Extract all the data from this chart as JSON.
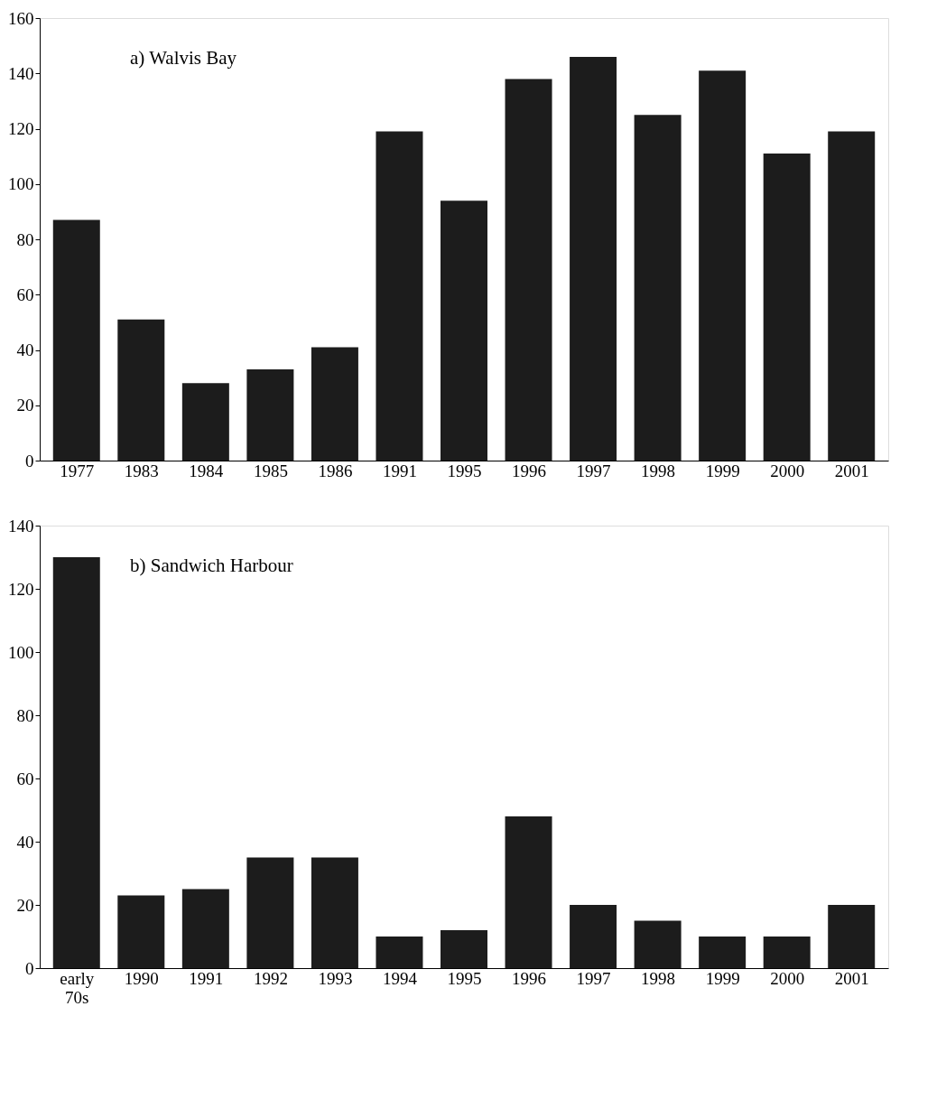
{
  "chart_data": [
    {
      "type": "bar",
      "title": "a) Walvis Bay",
      "categories": [
        "1977",
        "1983",
        "1984",
        "1985",
        "1986",
        "1991",
        "1995",
        "1996",
        "1997",
        "1998",
        "1999",
        "2000",
        "2001"
      ],
      "values": [
        87,
        51,
        28,
        33,
        41,
        119,
        94,
        138,
        146,
        125,
        141,
        111,
        119
      ],
      "color": "#1c1c1c",
      "ylim": [
        0,
        160
      ],
      "yticks": [
        0,
        20,
        40,
        60,
        80,
        100,
        120,
        140,
        160
      ],
      "grid": false
    },
    {
      "type": "bar",
      "title": "b) Sandwich Harbour",
      "categories": [
        "early 70s",
        "1990",
        "1991",
        "1992",
        "1993",
        "1994",
        "1995",
        "1996",
        "1997",
        "1998",
        "1999",
        "2000",
        "2001"
      ],
      "values": [
        130,
        23,
        25,
        35,
        35,
        10,
        12,
        48,
        20,
        15,
        10,
        10,
        20
      ],
      "color": "#1c1c1c",
      "ylim": [
        0,
        140
      ],
      "yticks": [
        0,
        20,
        40,
        60,
        80,
        100,
        120,
        140
      ],
      "grid": false
    }
  ]
}
